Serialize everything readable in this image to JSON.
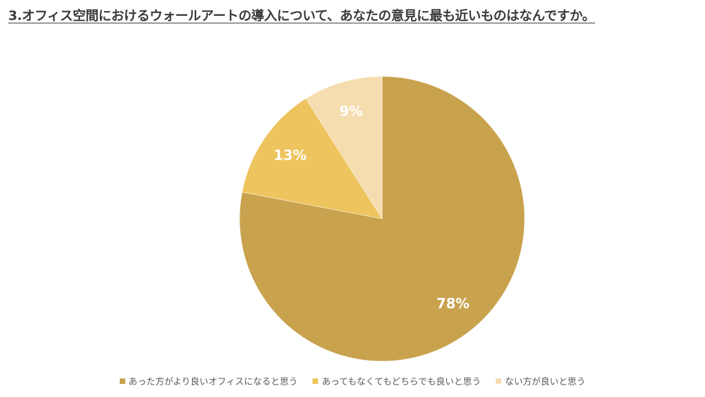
{
  "title": "3.オフィス空間におけるウォールアートの導入について、あなたの意見に最も近いものはなんですか。",
  "chart_data": {
    "type": "pie",
    "title": "3.オフィス空間におけるウォールアートの導入について、あなたの意見に最も近いものはなんですか。",
    "categories": [
      "あった方がより良いオフィスになると思う",
      "あってもなくてもどちらでも良いと思う",
      "ない方が良いと思う"
    ],
    "values": [
      78,
      13,
      9
    ],
    "labels": [
      "78%",
      "13%",
      "9%"
    ],
    "colors": [
      "#C9A24E",
      "#EDC45D",
      "#F5DDB0"
    ],
    "legend_position": "bottom"
  }
}
